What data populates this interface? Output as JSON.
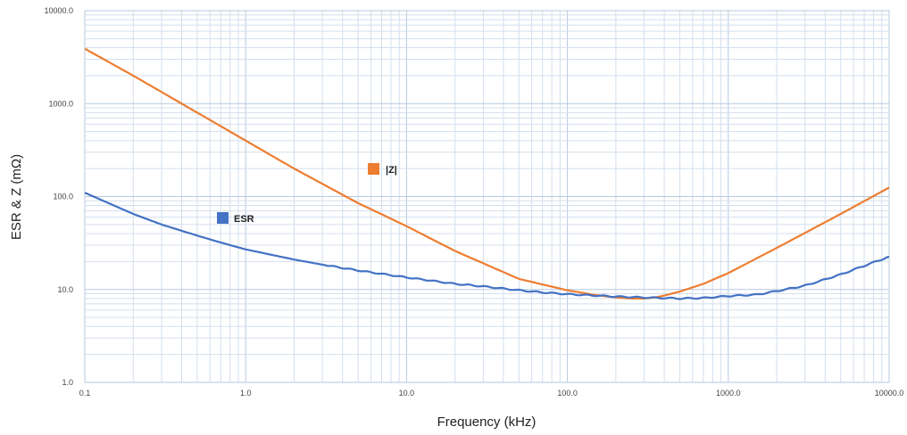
{
  "chart_data": {
    "type": "line",
    "title": "",
    "xlabel": "Frequency (kHz)",
    "ylabel": "ESR & Z (mΩ)",
    "x_scale": "log",
    "y_scale": "log",
    "xlim": [
      0.1,
      10000.0
    ],
    "ylim": [
      1.0,
      10000.0
    ],
    "x_tick_labels": [
      "0.1",
      "1.0",
      "10.0",
      "100.0",
      "1000.0",
      "10000.0"
    ],
    "y_tick_labels": [
      "1.0",
      "10.0",
      "100.0",
      "1000.0",
      "10000.0"
    ],
    "grid": true,
    "legend": "inline labels near curves",
    "series": [
      {
        "name": "|Z|",
        "color": "#ED7D31",
        "x": [
          0.1,
          0.2,
          0.5,
          1,
          2,
          5,
          10,
          20,
          50,
          100,
          150,
          200,
          250,
          300,
          350,
          400,
          500,
          700,
          1000,
          2000,
          5000,
          10000
        ],
        "y": [
          3900,
          2000,
          800,
          400,
          200,
          85,
          48,
          26,
          13,
          9.8,
          8.7,
          8.2,
          8.0,
          8.0,
          8.2,
          8.6,
          9.5,
          11.5,
          15,
          28,
          65,
          125
        ]
      },
      {
        "name": "ESR",
        "color": "#4472C4",
        "x": [
          0.1,
          0.2,
          0.3,
          0.5,
          0.7,
          1,
          2,
          3,
          5,
          10,
          20,
          30,
          50,
          70,
          100,
          150,
          200,
          300,
          500,
          700,
          1000,
          1500,
          2000,
          3000,
          5000,
          7000,
          10000
        ],
        "y": [
          110,
          65,
          50,
          38,
          32,
          27,
          21,
          18.5,
          16,
          13.5,
          11.5,
          10.8,
          9.8,
          9.3,
          8.9,
          8.6,
          8.4,
          8.2,
          8.0,
          8.1,
          8.5,
          8.8,
          9.6,
          11,
          14.5,
          18,
          22.5
        ]
      }
    ],
    "legend_labels": {
      "z": "|Z|",
      "esr": "ESR"
    }
  }
}
